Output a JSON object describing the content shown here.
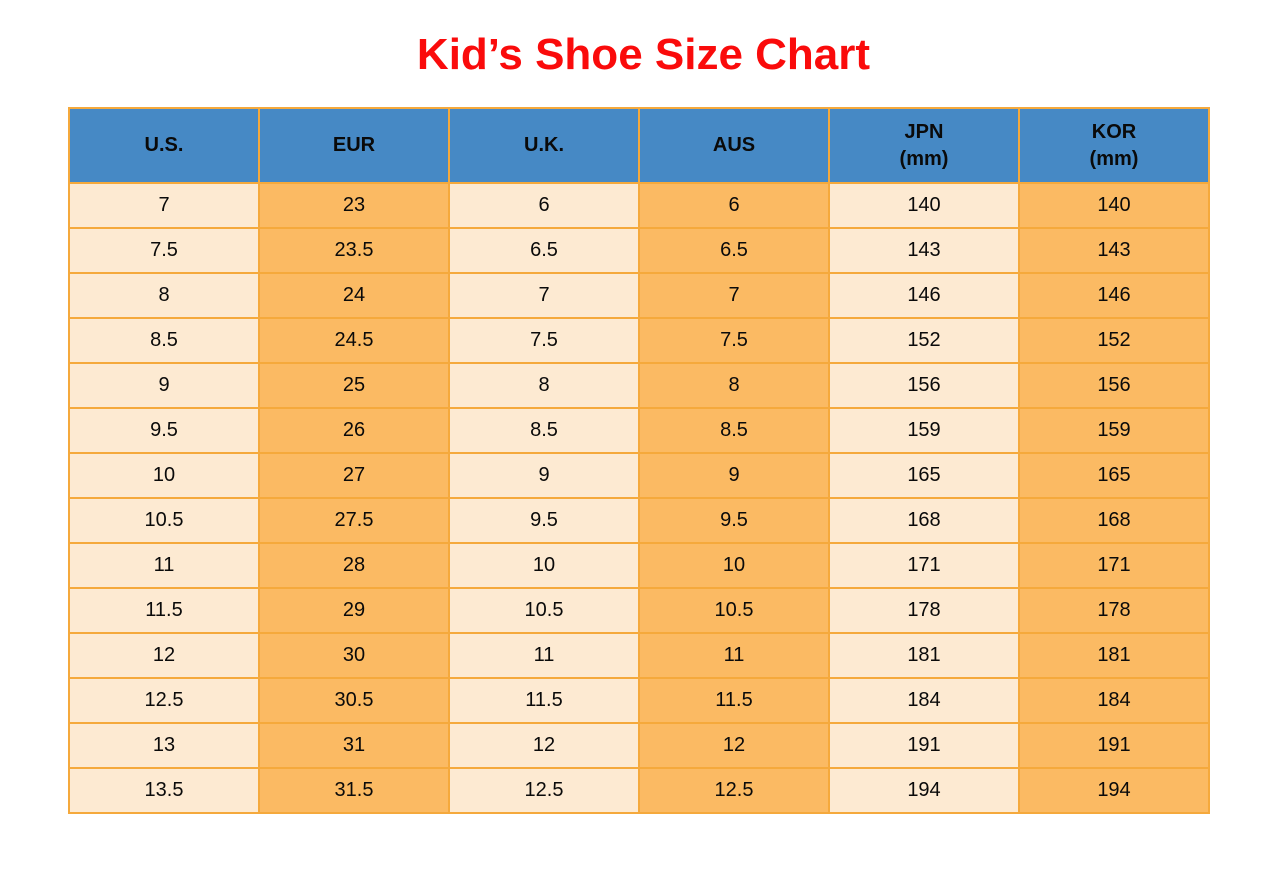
{
  "title": "Kid’s Shoe Size Chart",
  "colors": {
    "title_red": "#fa0b0b",
    "header_blue": "#4689c5",
    "cell_cream": "#fdead2",
    "cell_orange": "#fbba63",
    "grid_border_orange": "#f5a93c",
    "text": "#0a0a0a",
    "background": "#ffffff"
  },
  "chart_data": {
    "type": "table",
    "title": "Kid’s Shoe Size Chart",
    "column_labels": [
      "U.S.",
      "EUR",
      "U.K.",
      "AUS",
      "JPN (mm)",
      "KOR (mm)"
    ],
    "columns": [
      {
        "lines": [
          "U.S."
        ]
      },
      {
        "lines": [
          "EUR"
        ]
      },
      {
        "lines": [
          "U.K."
        ]
      },
      {
        "lines": [
          "AUS"
        ]
      },
      {
        "lines": [
          "JPN",
          "(mm)"
        ]
      },
      {
        "lines": [
          "KOR",
          "(mm)"
        ]
      }
    ],
    "rows": [
      [
        "7",
        "23",
        "6",
        "6",
        "140",
        "140"
      ],
      [
        "7.5",
        "23.5",
        "6.5",
        "6.5",
        "143",
        "143"
      ],
      [
        "8",
        "24",
        "7",
        "7",
        "146",
        "146"
      ],
      [
        "8.5",
        "24.5",
        "7.5",
        "7.5",
        "152",
        "152"
      ],
      [
        "9",
        "25",
        "8",
        "8",
        "156",
        "156"
      ],
      [
        "9.5",
        "26",
        "8.5",
        "8.5",
        "159",
        "159"
      ],
      [
        "10",
        "27",
        "9",
        "9",
        "165",
        "165"
      ],
      [
        "10.5",
        "27.5",
        "9.5",
        "9.5",
        "168",
        "168"
      ],
      [
        "11",
        "28",
        "10",
        "10",
        "171",
        "171"
      ],
      [
        "11.5",
        "29",
        "10.5",
        "10.5",
        "178",
        "178"
      ],
      [
        "12",
        "30",
        "11",
        "11",
        "181",
        "181"
      ],
      [
        "12.5",
        "30.5",
        "11.5",
        "11.5",
        "184",
        "184"
      ],
      [
        "13",
        "31",
        "12",
        "12",
        "191",
        "191"
      ],
      [
        "13.5",
        "31.5",
        "12.5",
        "12.5",
        "194",
        "194"
      ]
    ]
  }
}
